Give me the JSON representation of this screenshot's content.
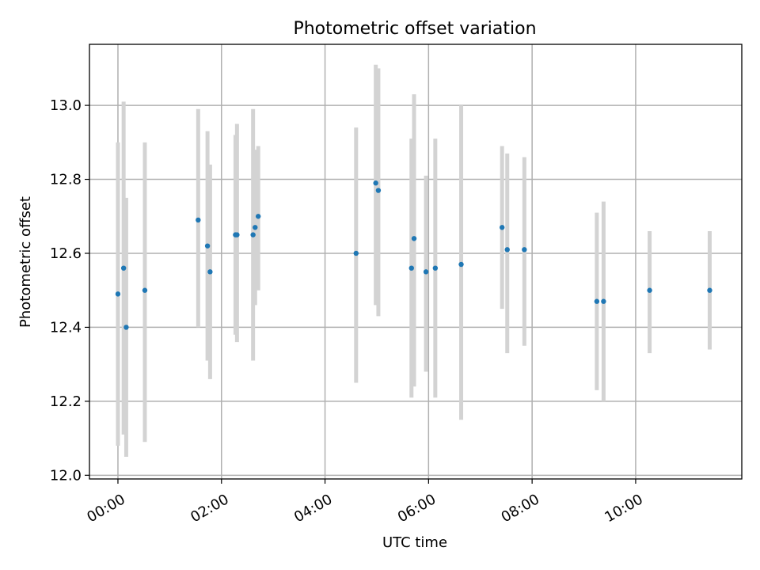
{
  "chart_data": {
    "type": "scatter",
    "title": "Photometric offset variation",
    "xlabel": "UTC time",
    "ylabel": "Photometric offset",
    "xlim": [
      -0.55,
      12.05
    ],
    "ylim": [
      11.99,
      13.165
    ],
    "x_ticks": [
      {
        "value": 0,
        "label": "00:00"
      },
      {
        "value": 2,
        "label": "02:00"
      },
      {
        "value": 4,
        "label": "04:00"
      },
      {
        "value": 6,
        "label": "06:00"
      },
      {
        "value": 8,
        "label": "08:00"
      },
      {
        "value": 10,
        "label": "10:00"
      }
    ],
    "y_ticks": [
      {
        "value": 12.0,
        "label": "12.0"
      },
      {
        "value": 12.2,
        "label": "12.2"
      },
      {
        "value": 12.4,
        "label": "12.4"
      },
      {
        "value": 12.6,
        "label": "12.6"
      },
      {
        "value": 12.8,
        "label": "12.8"
      },
      {
        "value": 13.0,
        "label": "13.0"
      }
    ],
    "grid": true,
    "marker_color": "#1f77b4",
    "errorbar_color": "#d3d3d3",
    "points": [
      {
        "x": 0.0,
        "y": 12.49,
        "lo": 12.08,
        "hi": 12.9
      },
      {
        "x": 0.11,
        "y": 12.56,
        "lo": 12.11,
        "hi": 13.01
      },
      {
        "x": 0.16,
        "y": 12.4,
        "lo": 12.05,
        "hi": 12.75
      },
      {
        "x": 0.52,
        "y": 12.5,
        "lo": 12.09,
        "hi": 12.9
      },
      {
        "x": 1.55,
        "y": 12.69,
        "lo": 12.4,
        "hi": 12.99
      },
      {
        "x": 1.73,
        "y": 12.62,
        "lo": 12.31,
        "hi": 12.93
      },
      {
        "x": 1.78,
        "y": 12.55,
        "lo": 12.26,
        "hi": 12.84
      },
      {
        "x": 2.27,
        "y": 12.65,
        "lo": 12.38,
        "hi": 12.92
      },
      {
        "x": 2.3,
        "y": 12.65,
        "lo": 12.36,
        "hi": 12.95
      },
      {
        "x": 2.61,
        "y": 12.65,
        "lo": 12.31,
        "hi": 12.99
      },
      {
        "x": 2.65,
        "y": 12.67,
        "lo": 12.46,
        "hi": 12.88
      },
      {
        "x": 2.71,
        "y": 12.7,
        "lo": 12.5,
        "hi": 12.89
      },
      {
        "x": 4.6,
        "y": 12.6,
        "lo": 12.25,
        "hi": 12.94
      },
      {
        "x": 4.98,
        "y": 12.79,
        "lo": 12.46,
        "hi": 13.11
      },
      {
        "x": 5.03,
        "y": 12.77,
        "lo": 12.43,
        "hi": 13.1
      },
      {
        "x": 5.67,
        "y": 12.56,
        "lo": 12.21,
        "hi": 12.91
      },
      {
        "x": 5.72,
        "y": 12.64,
        "lo": 12.24,
        "hi": 13.03
      },
      {
        "x": 5.95,
        "y": 12.55,
        "lo": 12.28,
        "hi": 12.81
      },
      {
        "x": 6.13,
        "y": 12.56,
        "lo": 12.21,
        "hi": 12.91
      },
      {
        "x": 6.63,
        "y": 12.57,
        "lo": 12.15,
        "hi": 13.0
      },
      {
        "x": 7.42,
        "y": 12.67,
        "lo": 12.45,
        "hi": 12.89
      },
      {
        "x": 7.52,
        "y": 12.61,
        "lo": 12.33,
        "hi": 12.87
      },
      {
        "x": 7.85,
        "y": 12.61,
        "lo": 12.35,
        "hi": 12.86
      },
      {
        "x": 9.25,
        "y": 12.47,
        "lo": 12.23,
        "hi": 12.71
      },
      {
        "x": 9.38,
        "y": 12.47,
        "lo": 12.2,
        "hi": 12.74
      },
      {
        "x": 10.27,
        "y": 12.5,
        "lo": 12.33,
        "hi": 12.66
      },
      {
        "x": 11.43,
        "y": 12.5,
        "lo": 12.34,
        "hi": 12.66
      }
    ]
  }
}
